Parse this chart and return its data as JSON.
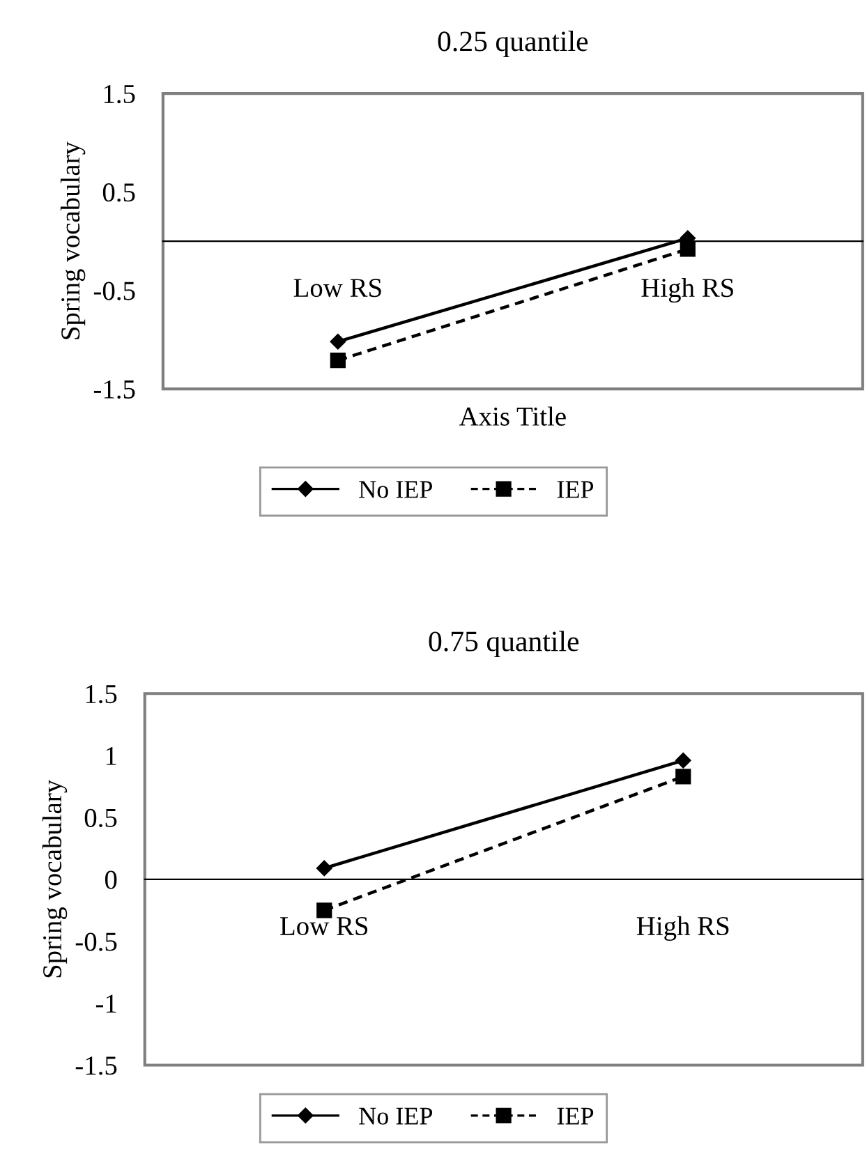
{
  "chart_data": [
    {
      "type": "line",
      "title": "0.25 quantile",
      "xlabel": "Axis Title",
      "ylabel": "Spring vocabulary",
      "categories": [
        "Low RS",
        "High RS"
      ],
      "series": [
        {
          "name": "No IEP",
          "color": "#000000",
          "values": [
            -1.02,
            0.03
          ],
          "marker": "diamond",
          "line_style": "solid"
        },
        {
          "name": "IEP",
          "color": "#000000",
          "values": [
            -1.21,
            -0.08
          ],
          "marker": "square",
          "line_style": "dashed"
        }
      ],
      "ylim": [
        -1.5,
        1.5
      ],
      "yticks": [
        -1.5,
        -0.5,
        0.5,
        1.5
      ],
      "grid": false,
      "legend": "bottom"
    },
    {
      "type": "line",
      "title": "0.75 quantile",
      "ylabel": "Spring vocabulary",
      "categories": [
        "Low RS",
        "High RS"
      ],
      "series": [
        {
          "name": "No IEP",
          "color": "#000000",
          "values": [
            0.09,
            0.96
          ],
          "marker": "diamond",
          "line_style": "solid"
        },
        {
          "name": "IEP",
          "color": "#000000",
          "values": [
            -0.25,
            0.83
          ],
          "marker": "square",
          "line_style": "dashed"
        }
      ],
      "ylim": [
        -1.5,
        1.5
      ],
      "yticks": [
        -1.5,
        -1,
        -0.5,
        0,
        0.5,
        1,
        1.5
      ],
      "grid": false,
      "legend": "bottom"
    }
  ]
}
